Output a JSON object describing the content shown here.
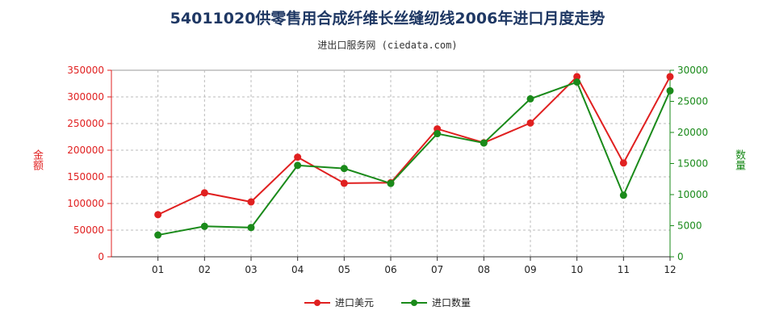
{
  "title": "54011020供零售用合成纤维长丝缝纫线2006年进口月度走势",
  "subtitle": "进出口服务网 (ciedata.com)",
  "chart_data": {
    "type": "line",
    "categories": [
      "01",
      "02",
      "03",
      "04",
      "05",
      "06",
      "07",
      "08",
      "09",
      "10",
      "11",
      "12"
    ],
    "y_left": {
      "label": "金额",
      "ylim": [
        0,
        350000
      ],
      "ticks": [
        "0",
        "50000",
        "100000",
        "150000",
        "200000",
        "250000",
        "300000",
        "350000"
      ]
    },
    "y_right": {
      "label": "数量",
      "ylim": [
        0,
        30000
      ],
      "ticks": [
        "0",
        "5000",
        "10000",
        "15000",
        "20000",
        "25000",
        "30000"
      ]
    },
    "series": [
      {
        "name": "进口美元",
        "axis": "left",
        "color": "#e02020",
        "values": [
          79000,
          120000,
          103000,
          187000,
          138000,
          139000,
          240000,
          214000,
          251000,
          338000,
          176000,
          338000
        ]
      },
      {
        "name": "进口数量",
        "axis": "right",
        "color": "#1a8a1a",
        "values": [
          3500,
          4900,
          4700,
          14700,
          14200,
          11800,
          19800,
          18300,
          25400,
          28100,
          9900,
          26700
        ]
      }
    ],
    "grid": true,
    "legend_position": "bottom"
  }
}
